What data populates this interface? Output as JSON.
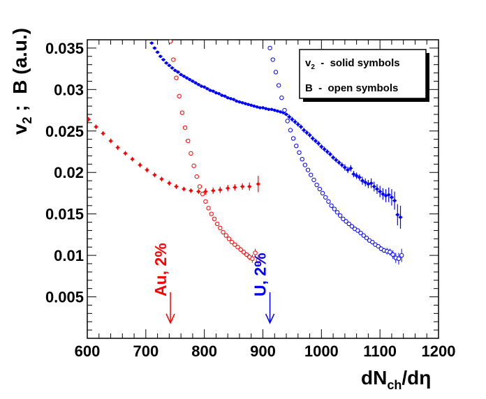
{
  "chart_data": {
    "type": "scatter",
    "title": "",
    "xlabel": {
      "main": "dN",
      "sub": "ch",
      "tail": "/dη"
    },
    "ylabel": {
      "main1": "v",
      "sub": "2",
      "main2": " ;  B (a.u.)"
    },
    "xlim": [
      600,
      1200
    ],
    "ylim": [
      0,
      0.036
    ],
    "x_ticks": [
      "600",
      "700",
      "800",
      "900",
      "1000",
      "1100",
      "1200"
    ],
    "y_ticks": [
      "0.005",
      "0.01",
      "0.015",
      "0.02",
      "0.025",
      "0.03",
      "0.035"
    ],
    "legend": {
      "position": "top-right",
      "line1_main": "v",
      "line1_sub": "2",
      "line1_text": "  -  solid symbols",
      "line2": "B  -  open symbols"
    },
    "annotations": [
      {
        "text": "Au, 2%",
        "x": 742,
        "color": "#ff0000"
      },
      {
        "text": "U, 2%",
        "x": 912,
        "color": "#0000ff"
      }
    ],
    "colors": {
      "Au": "#ff0000",
      "U": "#0000ff"
    },
    "series": [
      {
        "marker": "solid",
        "color": "#ff0000",
        "x": [
          602,
          615,
          627,
          640,
          652,
          665,
          677,
          690,
          702,
          715,
          727,
          740,
          752,
          765,
          777,
          790,
          802,
          815,
          827,
          840,
          852,
          865,
          877,
          892
        ],
        "y": [
          0.0264,
          0.0255,
          0.0247,
          0.0238,
          0.023,
          0.0223,
          0.0216,
          0.0209,
          0.0203,
          0.0197,
          0.0192,
          0.0187,
          0.0183,
          0.018,
          0.0178,
          0.0177,
          0.0177,
          0.0178,
          0.0179,
          0.0181,
          0.0182,
          0.0183,
          0.0183,
          0.0186
        ],
        "err": [
          0.0002,
          0.0002,
          0.0002,
          0.0002,
          0.0002,
          0.0002,
          0.0002,
          0.0002,
          0.0002,
          0.0002,
          0.0002,
          0.0002,
          0.0002,
          0.0002,
          0.0002,
          0.0002,
          0.0003,
          0.0003,
          0.0003,
          0.0003,
          0.0003,
          0.0003,
          0.0004,
          0.0009
        ]
      },
      {
        "marker": "open",
        "color": "#ff0000",
        "x": [
          742,
          747,
          752,
          757,
          762,
          767,
          772,
          777,
          782,
          787,
          792,
          797,
          802,
          807,
          812,
          817,
          822,
          827,
          832,
          837,
          842,
          847,
          852,
          857,
          862,
          867,
          872,
          877,
          882,
          887,
          892
        ],
        "y": [
          0.0358,
          0.0336,
          0.0314,
          0.0292,
          0.0272,
          0.0254,
          0.0238,
          0.0223,
          0.0208,
          0.0195,
          0.0183,
          0.0174,
          0.0165,
          0.0157,
          0.015,
          0.0144,
          0.0138,
          0.0133,
          0.0128,
          0.0124,
          0.012,
          0.0116,
          0.0113,
          0.011,
          0.0107,
          0.0104,
          0.0101,
          0.0098,
          0.0096,
          0.0103,
          0.0094
        ],
        "err": [
          0.0002,
          0.0002,
          0.0002,
          0.0002,
          0.0002,
          0.0002,
          0.0002,
          0.0002,
          0.0002,
          0.0002,
          0.0002,
          0.0002,
          0.0002,
          0.0002,
          0.0002,
          0.0002,
          0.0002,
          0.0002,
          0.0002,
          0.0002,
          0.0002,
          0.0002,
          0.0002,
          0.0002,
          0.0003,
          0.0003,
          0.0003,
          0.0004,
          0.0005,
          0.0005,
          0.0007
        ]
      },
      {
        "marker": "solid",
        "color": "#0000ff",
        "x": [
          710,
          715,
          720,
          725,
          730,
          735,
          740,
          745,
          750,
          755,
          760,
          765,
          770,
          775,
          780,
          785,
          790,
          795,
          800,
          805,
          810,
          815,
          820,
          825,
          830,
          835,
          840,
          845,
          850,
          855,
          860,
          865,
          870,
          875,
          880,
          885,
          890,
          895,
          900,
          905,
          910,
          915,
          920,
          925,
          930,
          935,
          940,
          945,
          950,
          955,
          960,
          965,
          970,
          975,
          980,
          985,
          990,
          995,
          1000,
          1005,
          1010,
          1015,
          1020,
          1025,
          1030,
          1035,
          1040,
          1045,
          1050,
          1055,
          1060,
          1065,
          1070,
          1075,
          1080,
          1085,
          1090,
          1095,
          1100,
          1105,
          1110,
          1115,
          1120,
          1125,
          1130,
          1135
        ],
        "y": [
          0.0356,
          0.035,
          0.0345,
          0.034,
          0.0336,
          0.0332,
          0.0329,
          0.0326,
          0.0323,
          0.0321,
          0.0318,
          0.0316,
          0.0314,
          0.0312,
          0.031,
          0.0308,
          0.0306,
          0.0304,
          0.0303,
          0.0301,
          0.0299,
          0.0298,
          0.0296,
          0.0295,
          0.0293,
          0.0292,
          0.029,
          0.0289,
          0.0288,
          0.0286,
          0.0285,
          0.0284,
          0.0283,
          0.0282,
          0.0281,
          0.028,
          0.0279,
          0.0278,
          0.0278,
          0.0277,
          0.0276,
          0.0276,
          0.0275,
          0.0274,
          0.0273,
          0.0272,
          0.027,
          0.0267,
          0.0264,
          0.0261,
          0.0258,
          0.0255,
          0.0251,
          0.0248,
          0.0245,
          0.0241,
          0.0238,
          0.0235,
          0.0231,
          0.0228,
          0.0225,
          0.0222,
          0.0218,
          0.0215,
          0.0212,
          0.0209,
          0.0206,
          0.0203,
          0.0205,
          0.0198,
          0.0196,
          0.0194,
          0.019,
          0.0188,
          0.0186,
          0.0187,
          0.0183,
          0.018,
          0.0177,
          0.0174,
          0.0172,
          0.0173,
          0.017,
          0.0166,
          0.0149,
          0.0146
        ],
        "err": [
          0.0001,
          0.0001,
          0.0001,
          0.0001,
          0.0001,
          0.0001,
          0.0001,
          0.0001,
          0.0001,
          0.0001,
          0.0001,
          0.0001,
          0.0001,
          0.0001,
          0.0001,
          0.0001,
          0.0001,
          0.0001,
          0.0001,
          0.0001,
          0.0001,
          0.0001,
          0.0001,
          0.0001,
          0.0001,
          0.0001,
          0.0001,
          0.0001,
          0.0001,
          0.0001,
          0.0001,
          0.0001,
          0.0001,
          0.0001,
          0.0001,
          0.0001,
          0.0001,
          0.0001,
          0.0001,
          0.0001,
          0.0001,
          0.0001,
          0.0001,
          0.0001,
          0.0001,
          0.0001,
          0.0001,
          0.0002,
          0.0002,
          0.0002,
          0.0002,
          0.0002,
          0.0002,
          0.0002,
          0.0002,
          0.0002,
          0.0002,
          0.0002,
          0.0002,
          0.0002,
          0.0002,
          0.0002,
          0.0002,
          0.0002,
          0.0002,
          0.0002,
          0.0003,
          0.0003,
          0.0003,
          0.0003,
          0.0003,
          0.0003,
          0.0004,
          0.0004,
          0.0004,
          0.0005,
          0.0005,
          0.0005,
          0.0006,
          0.0006,
          0.0007,
          0.0008,
          0.0009,
          0.001,
          0.0012,
          0.0013
        ]
      },
      {
        "marker": "open",
        "color": "#0000ff",
        "x": [
          912,
          917,
          922,
          927,
          932,
          937,
          942,
          947,
          952,
          957,
          962,
          967,
          972,
          977,
          982,
          987,
          992,
          997,
          1002,
          1007,
          1012,
          1017,
          1022,
          1027,
          1032,
          1037,
          1042,
          1047,
          1052,
          1057,
          1062,
          1067,
          1072,
          1077,
          1082,
          1087,
          1092,
          1097,
          1102,
          1107,
          1112,
          1117,
          1122,
          1127,
          1132,
          1137
        ],
        "y": [
          0.035,
          0.0336,
          0.0321,
          0.0305,
          0.029,
          0.0275,
          0.0262,
          0.0251,
          0.0241,
          0.0232,
          0.0224,
          0.0216,
          0.0209,
          0.0203,
          0.0197,
          0.0191,
          0.0185,
          0.018,
          0.0175,
          0.017,
          0.0165,
          0.016,
          0.0156,
          0.0152,
          0.0148,
          0.0144,
          0.0141,
          0.0138,
          0.0135,
          0.0132,
          0.013,
          0.0127,
          0.0124,
          0.0121,
          0.0118,
          0.0116,
          0.0113,
          0.0111,
          0.0108,
          0.0106,
          0.0105,
          0.0104,
          0.0101,
          0.0097,
          0.0096,
          0.01
        ],
        "err": [
          0.0001,
          0.0001,
          0.0001,
          0.0001,
          0.0001,
          0.0001,
          0.0001,
          0.0001,
          0.0001,
          0.0001,
          0.0001,
          0.0001,
          0.0001,
          0.0001,
          0.0001,
          0.0001,
          0.0001,
          0.0001,
          0.0001,
          0.0001,
          0.0001,
          0.0001,
          0.0001,
          0.0001,
          0.0001,
          0.0001,
          0.0001,
          0.0001,
          0.0001,
          0.0001,
          0.0001,
          0.0001,
          0.0001,
          0.0002,
          0.0002,
          0.0002,
          0.0002,
          0.0002,
          0.0003,
          0.0003,
          0.0004,
          0.0004,
          0.0005,
          0.0006,
          0.0007,
          0.0008
        ]
      }
    ]
  }
}
